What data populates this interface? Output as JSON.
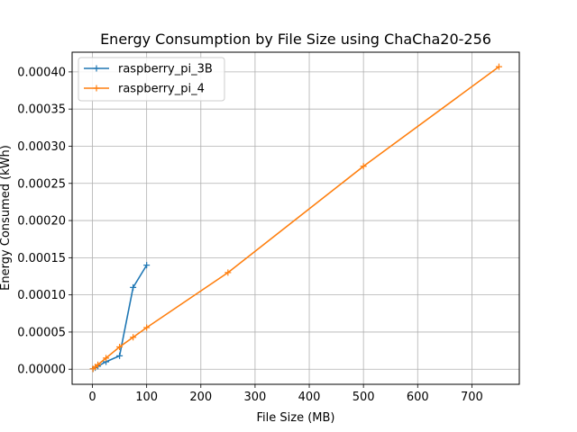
{
  "chart_data": {
    "type": "line",
    "title": "Energy Consumption by File Size using ChaCha20-256",
    "xlabel": "File Size (MB)",
    "ylabel": "Energy Consumed (kWh)",
    "xlim": [
      -37.5,
      787.5
    ],
    "ylim": [
      -2.03e-05,
      0.0004265
    ],
    "xticks": [
      0,
      100,
      200,
      300,
      400,
      500,
      600,
      700
    ],
    "xtick_labels": [
      "0",
      "100",
      "200",
      "300",
      "400",
      "500",
      "600",
      "700"
    ],
    "yticks": [
      0,
      5e-05,
      0.0001,
      0.00015,
      0.0002,
      0.00025,
      0.0003,
      0.00035,
      0.0004
    ],
    "ytick_labels": [
      "0.00000",
      "0.00005",
      "0.00010",
      "0.00015",
      "0.00020",
      "0.00025",
      "0.00030",
      "0.00035",
      "0.00040"
    ],
    "grid": true,
    "legend_position": "top-left",
    "series": [
      {
        "name": "raspberry_pi_3B",
        "color": "#1f77b4",
        "marker": "plus",
        "x": [
          1,
          5,
          10,
          25,
          50,
          75,
          100
        ],
        "y": [
          5e-07,
          2e-06,
          4e-06,
          1e-05,
          1.8e-05,
          0.00011,
          0.00014
        ]
      },
      {
        "name": "raspberry_pi_4",
        "color": "#ff7f0e",
        "marker": "plus",
        "x": [
          1,
          5,
          10,
          25,
          50,
          75,
          100,
          250,
          500,
          750
        ],
        "y": [
          5e-07,
          3e-06,
          6e-06,
          1.5e-05,
          3e-05,
          4.3e-05,
          5.6e-05,
          0.00013,
          0.000273,
          0.000407
        ]
      }
    ]
  }
}
